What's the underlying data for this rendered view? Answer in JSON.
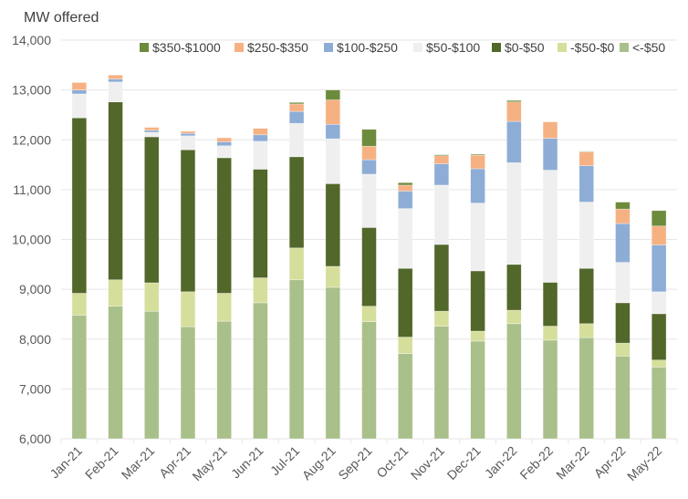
{
  "chart_data": {
    "type": "bar",
    "stacked": true,
    "title": "",
    "xlabel": "",
    "ylabel": "MW offered",
    "ylim": [
      6000,
      14000
    ],
    "yticks": [
      6000,
      7000,
      8000,
      9000,
      10000,
      11000,
      12000,
      13000,
      14000
    ],
    "ytick_labels": [
      "6,000",
      "7,000",
      "8,000",
      "9,000",
      "10,000",
      "11,000",
      "12,000",
      "13,000",
      "14,000"
    ],
    "grid": true,
    "legend_position": "top",
    "categories": [
      "Jan-21",
      "Feb-21",
      "Mar-21",
      "Apr-21",
      "May-21",
      "Jun-21",
      "Jul-21",
      "Aug-21",
      "Sep-21",
      "Oct-21",
      "Nov-21",
      "Dec-21",
      "Jan-22",
      "Feb-22",
      "Mar-22",
      "Apr-22",
      "May-22"
    ],
    "series": [
      {
        "name": "<-$50",
        "color": "#a9c08a",
        "values": [
          8480,
          8660,
          8560,
          8250,
          8360,
          8730,
          9190,
          9040,
          8350,
          7710,
          8260,
          7960,
          8310,
          7980,
          8030,
          7660,
          7440
        ]
      },
      {
        "name": "-$50-$0",
        "color": "#d6de9b",
        "values": [
          440,
          530,
          570,
          700,
          560,
          500,
          640,
          420,
          310,
          330,
          300,
          200,
          270,
          280,
          280,
          260,
          140
        ]
      },
      {
        "name": "$0-$50",
        "color": "#52672a",
        "values": [
          3520,
          3570,
          2930,
          2850,
          2720,
          2180,
          1830,
          1660,
          1580,
          1380,
          1340,
          1210,
          920,
          880,
          1110,
          810,
          930
        ]
      },
      {
        "name": "$50-$100",
        "color": "#efefef",
        "values": [
          480,
          400,
          90,
          280,
          240,
          560,
          670,
          900,
          1070,
          1200,
          1190,
          1360,
          2040,
          2250,
          1330,
          810,
          440
        ]
      },
      {
        "name": "$100-$250",
        "color": "#8eadd6",
        "values": [
          80,
          60,
          40,
          50,
          80,
          130,
          240,
          290,
          290,
          350,
          430,
          690,
          830,
          640,
          730,
          780,
          940
        ]
      },
      {
        "name": "$250-$350",
        "color": "#f6b183",
        "values": [
          150,
          80,
          60,
          40,
          80,
          130,
          150,
          490,
          270,
          120,
          160,
          270,
          390,
          330,
          280,
          290,
          380
        ]
      },
      {
        "name": "$350-$1000",
        "color": "#6d8b3c",
        "values": [
          0,
          0,
          0,
          0,
          0,
          0,
          30,
          200,
          340,
          50,
          20,
          20,
          30,
          0,
          10,
          140,
          310
        ]
      }
    ],
    "legend_order": [
      "$350-$1000",
      "$250-$350",
      "$100-$250",
      "$50-$100",
      "$0-$50",
      "-$50-$0",
      "<-$50"
    ]
  }
}
